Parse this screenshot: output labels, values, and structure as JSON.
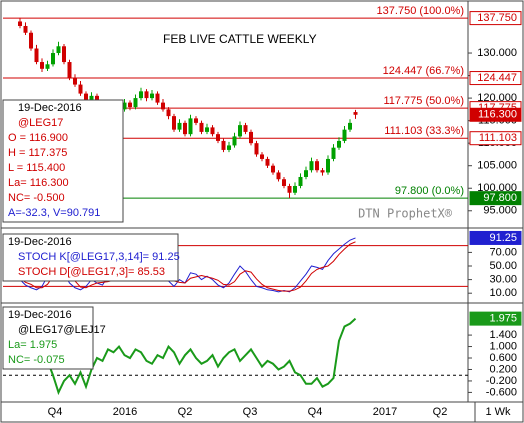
{
  "chart_data": [
    {
      "type": "candlestick",
      "title": "FEB LIVE CATTLE WEEKLY",
      "watermark": "DTN ProphetX®",
      "info": [
        "19-Dec-2016",
        "@LEG17",
        "O = 116.900",
        "H = 117.375",
        "L = 115.400",
        "La= 116.300",
        "NC= -0.500",
        "A=-32.3, V=90.791"
      ],
      "up_color": "#00a000",
      "down_color": "#d00000",
      "ohlc": [
        [
          137.0,
          137.8,
          135.5,
          136.0
        ],
        [
          136.0,
          136.8,
          134.0,
          134.5
        ],
        [
          134.5,
          135.0,
          130.5,
          131.0
        ],
        [
          131.0,
          131.8,
          127.5,
          128.0
        ],
        [
          128.0,
          128.8,
          125.8,
          126.5
        ],
        [
          126.5,
          128.3,
          126.0,
          127.5
        ],
        [
          127.5,
          130.8,
          127.0,
          130.0
        ],
        [
          130.0,
          132.5,
          129.5,
          131.5
        ],
        [
          131.5,
          132.0,
          127.5,
          128.0
        ],
        [
          128.0,
          128.5,
          124.0,
          124.5
        ],
        [
          124.5,
          125.3,
          122.5,
          123.0
        ],
        [
          123.0,
          123.8,
          120.5,
          121.0
        ],
        [
          121.0,
          121.5,
          119.0,
          119.5
        ],
        [
          119.5,
          121.3,
          119.0,
          120.5
        ],
        [
          120.5,
          121.0,
          117.5,
          118.0
        ],
        [
          118.0,
          118.8,
          116.3,
          117.0
        ],
        [
          117.0,
          119.3,
          116.5,
          118.5
        ],
        [
          118.5,
          119.0,
          116.0,
          116.5
        ],
        [
          116.5,
          118.3,
          116.0,
          117.5
        ],
        [
          117.5,
          119.8,
          117.0,
          119.0
        ],
        [
          119.0,
          119.5,
          117.3,
          118.0
        ],
        [
          118.0,
          120.8,
          117.5,
          120.0
        ],
        [
          120.0,
          122.3,
          119.5,
          121.5
        ],
        [
          121.5,
          122.0,
          119.3,
          120.0
        ],
        [
          120.0,
          121.8,
          119.5,
          121.0
        ],
        [
          121.0,
          121.5,
          118.5,
          119.0
        ],
        [
          119.0,
          119.8,
          117.0,
          117.5
        ],
        [
          117.5,
          118.0,
          115.3,
          116.0
        ],
        [
          116.0,
          116.5,
          112.5,
          113.0
        ],
        [
          113.0,
          115.3,
          112.5,
          114.5
        ],
        [
          114.5,
          115.0,
          111.5,
          112.0
        ],
        [
          112.0,
          116.3,
          111.5,
          115.5
        ],
        [
          115.5,
          116.0,
          114.0,
          114.5
        ],
        [
          114.5,
          115.0,
          112.0,
          112.5
        ],
        [
          112.5,
          114.3,
          112.0,
          113.5
        ],
        [
          113.5,
          114.0,
          111.5,
          112.0
        ],
        [
          112.0,
          112.5,
          110.0,
          110.5
        ],
        [
          110.5,
          111.0,
          108.0,
          108.5
        ],
        [
          108.5,
          110.3,
          108.0,
          109.5
        ],
        [
          109.5,
          112.3,
          109.0,
          111.5
        ],
        [
          111.5,
          114.8,
          111.0,
          114.0
        ],
        [
          114.0,
          114.5,
          112.0,
          112.5
        ],
        [
          112.5,
          113.0,
          109.5,
          110.0
        ],
        [
          110.0,
          110.5,
          107.0,
          107.5
        ],
        [
          107.5,
          108.0,
          106.0,
          106.5
        ],
        [
          106.5,
          107.0,
          104.5,
          105.0
        ],
        [
          105.0,
          105.5,
          103.0,
          103.5
        ],
        [
          103.5,
          104.0,
          101.5,
          102.0
        ],
        [
          102.0,
          102.5,
          100.0,
          100.5
        ],
        [
          100.5,
          101.0,
          97.8,
          99.0
        ],
        [
          99.0,
          101.3,
          98.5,
          100.5
        ],
        [
          100.5,
          103.3,
          100.0,
          102.5
        ],
        [
          102.5,
          104.8,
          102.0,
          104.0
        ],
        [
          104.0,
          106.8,
          103.5,
          106.0
        ],
        [
          106.0,
          106.5,
          103.5,
          104.0
        ],
        [
          104.0,
          104.5,
          102.8,
          103.5
        ],
        [
          103.5,
          107.3,
          103.0,
          106.5
        ],
        [
          106.5,
          109.8,
          106.0,
          109.0
        ],
        [
          109.0,
          111.3,
          108.5,
          110.5
        ],
        [
          110.5,
          113.8,
          110.0,
          113.0
        ],
        [
          113.0,
          115.3,
          112.5,
          114.5
        ],
        [
          116.9,
          117.375,
          115.4,
          116.3
        ]
      ],
      "ylim": [
        91.4,
        141.1
      ],
      "yticks": [
        {
          "value": 130,
          "label": "130.000"
        },
        {
          "value": 125,
          "label": "125.000"
        },
        {
          "value": 120,
          "label": "120.000"
        },
        {
          "value": 115,
          "label": "115.000"
        },
        {
          "value": 110,
          "label": "110.000"
        },
        {
          "value": 105,
          "label": "105.000"
        },
        {
          "value": 100,
          "label": "100.000"
        },
        {
          "value": 95,
          "label": "95.000"
        }
      ],
      "levels": [
        {
          "value": 137.75,
          "label": "137.750",
          "text": "137.750 (100.0%)",
          "color": "#d00000"
        },
        {
          "value": 124.447,
          "label": "124.447",
          "text": "124.447 (66.7%)",
          "color": "#d00000"
        },
        {
          "value": 117.775,
          "label": "117.775",
          "text": "117.775 (50.0%)",
          "color": "#d00000"
        },
        {
          "value": 111.103,
          "label": "111.103",
          "text": "111.103 (33.3%)",
          "color": "#d00000"
        },
        {
          "value": 97.8,
          "label": "97.800",
          "text": "97.800 (0.0%)",
          "color": "#008000"
        }
      ],
      "last_price": {
        "value": 116.3,
        "label": "116.300"
      }
    },
    {
      "type": "line",
      "info": [
        "19-Dec-2016"
      ],
      "series": [
        {
          "name": "STOCH K[@LEG17,3,14]= 91.25",
          "color": "#2020d0",
          "values": [
            30,
            22,
            18,
            15,
            20,
            35,
            50,
            55,
            40,
            25,
            18,
            15,
            20,
            30,
            25,
            22,
            35,
            30,
            38,
            48,
            45,
            55,
            60,
            52,
            58,
            45,
            35,
            28,
            20,
            30,
            25,
            40,
            38,
            30,
            35,
            30,
            22,
            18,
            25,
            38,
            50,
            42,
            30,
            20,
            18,
            15,
            14,
            12,
            14,
            12,
            18,
            28,
            38,
            50,
            48,
            45,
            58,
            68,
            75,
            82,
            88,
            91.25
          ]
        },
        {
          "name": "STOCH D[@LEG17,3]= 85.53",
          "color": "#d00000",
          "values": [
            32,
            26,
            23,
            18,
            18,
            23,
            35,
            47,
            48,
            40,
            28,
            19,
            18,
            22,
            25,
            26,
            27,
            29,
            34,
            39,
            44,
            49,
            53,
            56,
            57,
            52,
            46,
            36,
            28,
            26,
            25,
            32,
            34,
            36,
            34,
            32,
            29,
            23,
            22,
            27,
            38,
            43,
            41,
            31,
            23,
            18,
            16,
            14,
            13,
            13,
            15,
            19,
            28,
            39,
            45,
            48,
            50,
            57,
            67,
            75,
            82,
            85.53
          ]
        }
      ],
      "ylim": [
        0,
        100
      ],
      "yticks": [
        {
          "value": 70,
          "label": "70.00"
        },
        {
          "value": 50,
          "label": "50.00"
        },
        {
          "value": 30,
          "label": "30.00"
        },
        {
          "value": 10,
          "label": "10.00"
        }
      ],
      "levels": [
        80,
        20
      ]
    },
    {
      "type": "line",
      "info": [
        "19-Dec-2016",
        "La= 1.975",
        "NC= -0.075"
      ],
      "series": [
        {
          "name": "@LEG17@LEJ17",
          "color": "#1a9a1a",
          "values": [
            null,
            null,
            null,
            null,
            0.3,
            0.5,
            0.0,
            -0.6,
            -0.2,
            0.0,
            -0.3,
            0.1,
            -0.4,
            0.2,
            0.6,
            0.5,
            0.9,
            0.8,
            1.0,
            0.7,
            0.6,
            0.9,
            0.8,
            0.5,
            0.4,
            0.7,
            0.6,
            1.0,
            0.8,
            0.4,
            0.7,
            0.9,
            0.6,
            0.4,
            0.5,
            0.7,
            0.3,
            0.6,
            0.8,
            0.9,
            0.5,
            0.7,
            0.9,
            0.6,
            0.3,
            0.5,
            0.4,
            0.2,
            0.3,
            0.5,
            0.1,
            0.0,
            -0.3,
            -0.3,
            -0.1,
            -0.4,
            -0.3,
            -0.1,
            1.2,
            1.7,
            1.8,
            1.975
          ]
        }
      ],
      "ylim": [
        -0.9,
        2.45
      ],
      "yticks": [
        {
          "value": 1.4,
          "label": "1.400"
        },
        {
          "value": 1,
          "label": "1.000"
        },
        {
          "value": 0.6,
          "label": "0.600"
        },
        {
          "value": 0.2,
          "label": "0.200"
        },
        {
          "value": -0.2,
          "label": "-0.200"
        },
        {
          "value": -0.6,
          "label": "-0.600"
        }
      ],
      "zero_line": 0
    }
  ],
  "x_axis": {
    "labels": [
      "Q4",
      "2016",
      "Q2",
      "Q3",
      "Q4",
      "2017",
      "Q2"
    ],
    "period": "1 Wk"
  }
}
